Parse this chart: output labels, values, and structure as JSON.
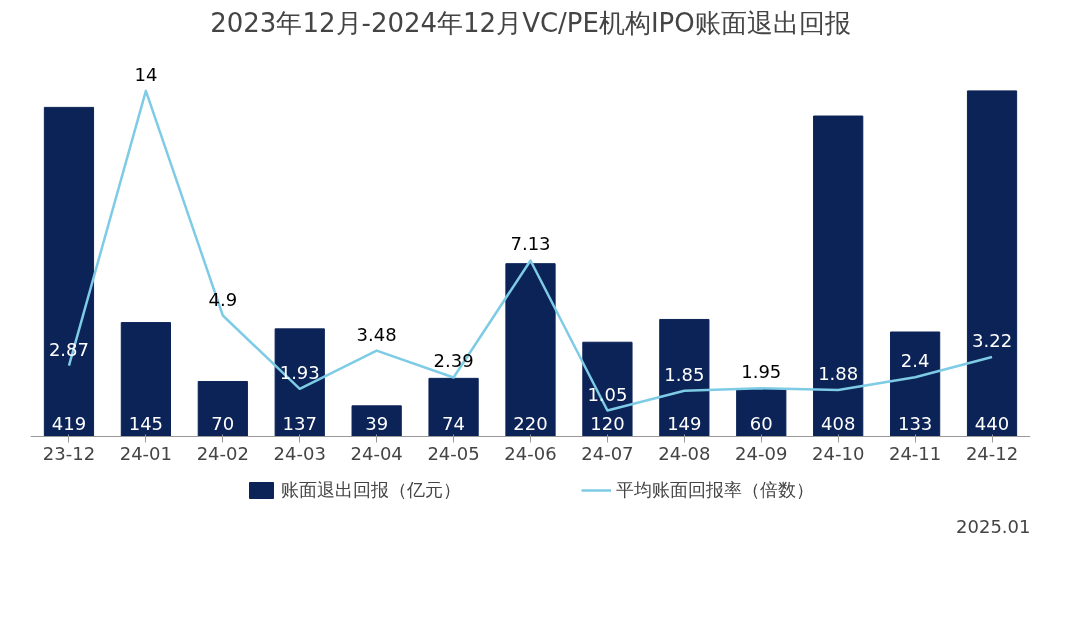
{
  "chart_data": {
    "type": "bar",
    "title": "2023年12月-2024年12月VC/PE机构IPO账面退出回报",
    "categories": [
      "23-12",
      "24-01",
      "24-02",
      "24-03",
      "24-04",
      "24-05",
      "24-06",
      "24-07",
      "24-08",
      "24-09",
      "24-10",
      "24-11",
      "24-12"
    ],
    "series": [
      {
        "name": "账面退出回报（亿元）",
        "color": "#0b2357",
        "values": [
          419,
          145,
          70,
          137,
          39,
          74,
          220,
          120,
          149,
          60,
          408,
          133,
          440
        ]
      },
      {
        "name": "平均账面回报率（倍数）",
        "type": "line",
        "axis": "y2",
        "color": "#7ecbe6",
        "values": [
          2.87,
          14,
          4.9,
          1.93,
          3.48,
          2.39,
          7.13,
          1.05,
          1.85,
          1.95,
          1.88,
          2.4,
          3.22
        ]
      }
    ],
    "data_labels": true,
    "legend": "bottom",
    "tick_labels": "x",
    "grid": false,
    "annotations": [
      "2025.01"
    ]
  }
}
